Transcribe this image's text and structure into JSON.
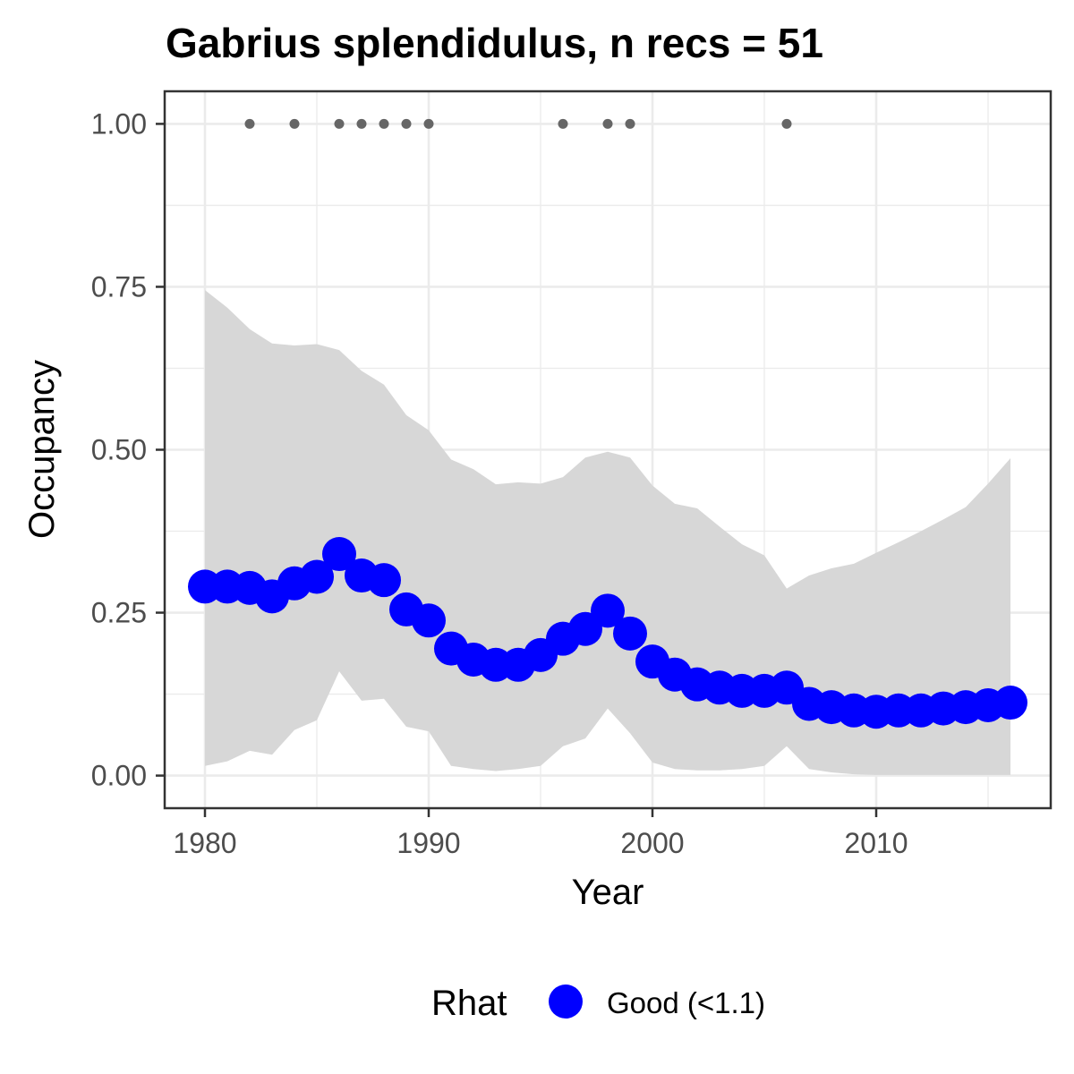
{
  "colors": {
    "points": "#0000ff",
    "ribbon": "#d7d7d7",
    "records": "#666666",
    "grid": "#ebebeb",
    "panel_border": "#333333",
    "text": "#000000",
    "tick_text": "#4d4d4d"
  },
  "chart_data": {
    "type": "scatter",
    "title": "Gabrius splendidulus, n recs = 51",
    "xlabel": "Year",
    "ylabel": "Occupancy",
    "xlim": [
      1978.2,
      2017.8
    ],
    "ylim": [
      -0.05,
      1.05
    ],
    "x_ticks": [
      1980,
      1990,
      2000,
      2010
    ],
    "y_ticks": [
      0.0,
      0.25,
      0.5,
      0.75,
      1.0
    ],
    "x_tick_labels": [
      "1980",
      "1990",
      "2000",
      "2010"
    ],
    "y_tick_labels": [
      "0.00",
      "0.25",
      "0.50",
      "0.75",
      "1.00"
    ],
    "grid": true,
    "legend": {
      "title": "Rhat",
      "position": "bottom",
      "entries": [
        "Good (<1.1)"
      ]
    },
    "years": [
      1980,
      1981,
      1982,
      1983,
      1984,
      1985,
      1986,
      1987,
      1988,
      1989,
      1990,
      1991,
      1992,
      1993,
      1994,
      1995,
      1996,
      1997,
      1998,
      1999,
      2000,
      2001,
      2002,
      2003,
      2004,
      2005,
      2006,
      2007,
      2008,
      2009,
      2010,
      2011,
      2012,
      2013,
      2014,
      2015,
      2016
    ],
    "occupancy": [
      0.29,
      0.29,
      0.288,
      0.275,
      0.295,
      0.305,
      0.34,
      0.307,
      0.3,
      0.255,
      0.238,
      0.195,
      0.178,
      0.17,
      0.17,
      0.185,
      0.21,
      0.225,
      0.253,
      0.218,
      0.175,
      0.155,
      0.14,
      0.135,
      0.13,
      0.13,
      0.135,
      0.11,
      0.105,
      0.1,
      0.098,
      0.1,
      0.1,
      0.103,
      0.105,
      0.108,
      0.112
    ],
    "ci_lower": [
      0.015,
      0.022,
      0.038,
      0.032,
      0.07,
      0.085,
      0.16,
      0.115,
      0.118,
      0.075,
      0.068,
      0.015,
      0.01,
      0.007,
      0.01,
      0.015,
      0.045,
      0.057,
      0.103,
      0.065,
      0.02,
      0.01,
      0.008,
      0.008,
      0.01,
      0.015,
      0.045,
      0.01,
      0.005,
      0.002,
      0.001,
      0.001,
      0.001,
      0.001,
      0.001,
      0.001,
      0.001
    ],
    "ci_upper": [
      0.745,
      0.718,
      0.685,
      0.663,
      0.66,
      0.662,
      0.653,
      0.621,
      0.6,
      0.553,
      0.53,
      0.485,
      0.47,
      0.447,
      0.45,
      0.448,
      0.458,
      0.488,
      0.497,
      0.488,
      0.445,
      0.417,
      0.41,
      0.382,
      0.355,
      0.338,
      0.287,
      0.307,
      0.318,
      0.325,
      0.342,
      0.358,
      0.375,
      0.393,
      0.412,
      0.448,
      0.487
    ],
    "record_years": [
      1982,
      1984,
      1986,
      1987,
      1988,
      1989,
      1990,
      1996,
      1998,
      1999,
      2006
    ],
    "record_value": 1.0
  }
}
